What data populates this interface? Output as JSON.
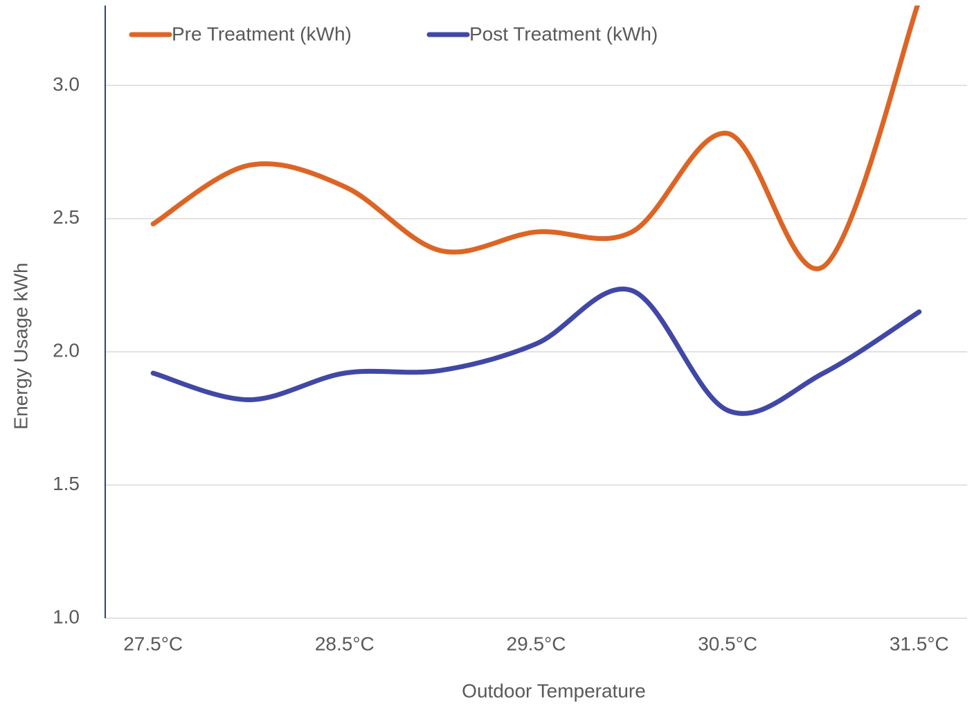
{
  "chart_data": {
    "type": "line",
    "x_label": "Outdoor Temperature",
    "y_label": "Energy Usage kWh",
    "categories": [
      "27.5°C",
      null,
      "28.5°C",
      null,
      "29.5°C",
      null,
      "30.5°C",
      null,
      "31.5°C"
    ],
    "series": [
      {
        "name": "Pre Treatment (kWh)",
        "color": "#e2621f",
        "values": [
          2.48,
          2.7,
          2.62,
          2.38,
          2.45,
          2.45,
          2.82,
          2.32,
          3.32
        ]
      },
      {
        "name": "Post Treatment (kWh)",
        "color": "#3f48aa",
        "values": [
          1.92,
          1.82,
          1.92,
          1.93,
          2.03,
          2.23,
          1.78,
          1.92,
          2.15
        ]
      }
    ],
    "ylim": [
      1.0,
      3.3
    ],
    "yticks": [
      {
        "value": 1,
        "label": "1.0"
      },
      1.5,
      {
        "value": 2,
        "label": "2.0"
      },
      2.5,
      {
        "value": 3,
        "label": "3.0"
      }
    ],
    "grid": true,
    "smooth": true,
    "legend": "top"
  }
}
